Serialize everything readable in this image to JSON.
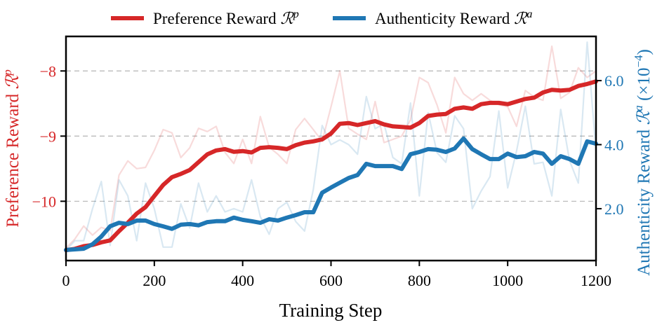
{
  "chart_data": {
    "type": "line",
    "xlabel": "Training Step",
    "xlim": [
      0,
      1200
    ],
    "x_ticks": [
      0,
      200,
      400,
      600,
      800,
      1000,
      1200
    ],
    "x_tick_labels": [
      "0",
      "200",
      "400",
      "600",
      "800",
      "1000",
      "1200"
    ],
    "y_left": {
      "label": {
        "text": "Preference Reward ",
        "symbol": "ℛ",
        "sup": "p"
      },
      "lim": [
        -10.91,
        -7.47
      ],
      "ticks": [
        -8,
        -9,
        -10
      ],
      "tick_labels": [
        "−8",
        "−9",
        "−10"
      ],
      "color": "#d62728"
    },
    "y_right": {
      "label": {
        "text": "Authenticity Reward ",
        "symbol": "ℛ",
        "sup": "a",
        "unit": " (×10",
        "unit_sup": "−4",
        "unit_end": ")"
      },
      "lim": [
        0.38,
        7.38
      ],
      "ticks": [
        2.0,
        4.0,
        6.0
      ],
      "tick_labels": [
        "2.0",
        "4.0",
        "6.0"
      ],
      "color": "#1f77b4"
    },
    "grid": "horizontal dashed at left-axis ticks",
    "legend": {
      "placement": "top-center",
      "entries": [
        {
          "text": "Preference Reward ",
          "symbol": "ℛ",
          "sup": "p",
          "color": "#d62728"
        },
        {
          "text": "Authenticity Reward ",
          "symbol": "ℛ",
          "sup": "a",
          "color": "#1f77b4"
        }
      ]
    },
    "x": [
      0,
      20,
      40,
      60,
      80,
      100,
      120,
      140,
      160,
      180,
      200,
      220,
      240,
      260,
      280,
      300,
      320,
      340,
      360,
      380,
      400,
      420,
      440,
      460,
      480,
      500,
      520,
      540,
      560,
      580,
      600,
      620,
      640,
      660,
      680,
      700,
      720,
      740,
      760,
      780,
      800,
      820,
      840,
      860,
      880,
      900,
      920,
      940,
      960,
      980,
      1000,
      1020,
      1040,
      1060,
      1080,
      1100,
      1120,
      1140,
      1160,
      1180,
      1200
    ],
    "series": [
      {
        "name": "Preference Reward ℛp",
        "axis": "left",
        "smoothed": [
          -10.75,
          -10.73,
          -10.69,
          -10.67,
          -10.63,
          -10.6,
          -10.46,
          -10.33,
          -10.19,
          -10.09,
          -9.92,
          -9.75,
          -9.63,
          -9.58,
          -9.52,
          -9.4,
          -9.28,
          -9.22,
          -9.2,
          -9.24,
          -9.23,
          -9.25,
          -9.18,
          -9.17,
          -9.18,
          -9.2,
          -9.14,
          -9.1,
          -9.08,
          -9.05,
          -8.96,
          -8.81,
          -8.8,
          -8.83,
          -8.8,
          -8.77,
          -8.82,
          -8.85,
          -8.86,
          -8.87,
          -8.8,
          -8.69,
          -8.67,
          -8.66,
          -8.58,
          -8.56,
          -8.58,
          -8.51,
          -8.49,
          -8.49,
          -8.51,
          -8.47,
          -8.43,
          -8.41,
          -8.33,
          -8.29,
          -8.3,
          -8.29,
          -8.23,
          -8.2,
          -8.16
        ],
        "raw": [
          -10.72,
          -10.58,
          -10.38,
          -10.52,
          -10.4,
          -10.45,
          -9.6,
          -9.38,
          -9.5,
          -9.48,
          -9.22,
          -8.9,
          -8.95,
          -9.33,
          -9.18,
          -8.88,
          -8.93,
          -8.85,
          -9.25,
          -9.42,
          -9.05,
          -9.42,
          -8.7,
          -9.17,
          -9.28,
          -9.42,
          -8.9,
          -8.73,
          -8.9,
          -9.08,
          -8.55,
          -8.0,
          -8.88,
          -8.97,
          -9.05,
          -8.47,
          -9.1,
          -9.05,
          -9.0,
          -8.75,
          -8.1,
          -8.18,
          -8.52,
          -8.95,
          -8.1,
          -8.35,
          -8.45,
          -8.35,
          -8.45,
          -8.52,
          -8.55,
          -8.85,
          -8.3,
          -8.4,
          -8.45,
          -7.62,
          -8.42,
          -8.33,
          -7.95,
          -8.1,
          -8.0
        ]
      },
      {
        "name": "Authenticity Reward ℛa",
        "axis": "right",
        "smoothed": [
          0.71,
          0.73,
          0.75,
          0.89,
          1.13,
          1.45,
          1.56,
          1.52,
          1.63,
          1.63,
          1.52,
          1.45,
          1.37,
          1.5,
          1.52,
          1.48,
          1.58,
          1.61,
          1.61,
          1.72,
          1.65,
          1.61,
          1.56,
          1.67,
          1.63,
          1.72,
          1.8,
          1.89,
          1.89,
          2.5,
          2.66,
          2.81,
          2.96,
          3.05,
          3.4,
          3.33,
          3.33,
          3.33,
          3.24,
          3.7,
          3.77,
          3.86,
          3.84,
          3.77,
          3.88,
          4.19,
          3.86,
          3.7,
          3.55,
          3.55,
          3.72,
          3.61,
          3.64,
          3.77,
          3.72,
          3.4,
          3.64,
          3.55,
          3.4,
          4.1,
          4.03
        ],
        "raw": [
          0.7,
          1.0,
          1.0,
          2.0,
          2.85,
          0.85,
          2.9,
          2.4,
          1.0,
          2.8,
          2.0,
          0.8,
          0.8,
          2.15,
          1.4,
          2.8,
          1.9,
          2.4,
          1.9,
          2.0,
          1.9,
          2.9,
          1.75,
          1.2,
          2.0,
          2.2,
          1.6,
          1.3,
          2.6,
          4.6,
          4.0,
          4.15,
          4.0,
          3.7,
          5.5,
          4.5,
          4.65,
          3.6,
          3.4,
          5.3,
          2.4,
          5.0,
          3.75,
          3.45,
          4.9,
          4.5,
          2.0,
          2.55,
          3.0,
          5.05,
          2.65,
          3.8,
          5.2,
          3.4,
          3.45,
          2.4,
          5.1,
          3.5,
          2.8,
          7.2,
          3.8
        ]
      }
    ]
  }
}
